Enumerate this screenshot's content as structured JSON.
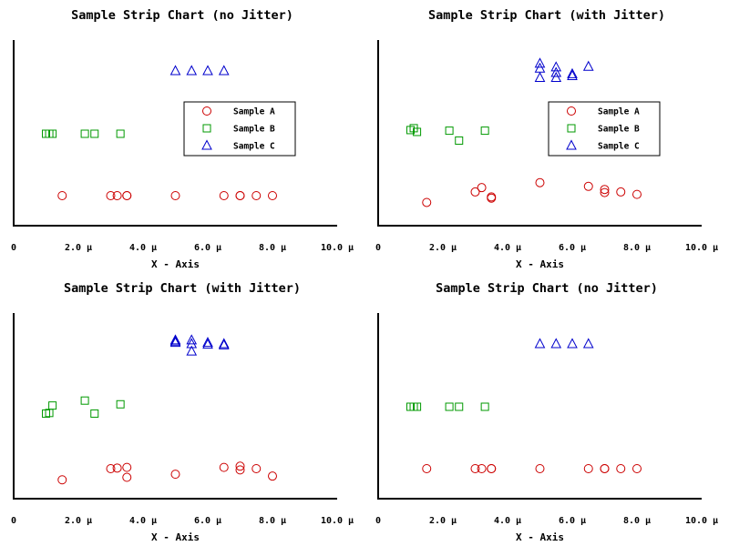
{
  "chart_data": [
    {
      "type": "scatter",
      "title": "Sample Strip Chart (no Jitter)",
      "xlabel": "X - Axis",
      "xlim": [
        0,
        10
      ],
      "xticks": [
        "0",
        "2.0 µ",
        "4.0 µ",
        "6.0 µ",
        "8.0 µ",
        "10.0 µ"
      ],
      "legend": "center-right",
      "series": [
        {
          "name": "Sample A",
          "color": "#cc0000",
          "marker": "circle",
          "level": 1,
          "x": [
            1.5,
            3.0,
            3.2,
            3.5,
            3.5,
            5.0,
            6.5,
            7.0,
            7.0,
            7.5,
            8.0
          ],
          "y": [
            1,
            1,
            1,
            1,
            1,
            1,
            1,
            1,
            1,
            1,
            1
          ]
        },
        {
          "name": "Sample B",
          "color": "#009900",
          "marker": "square",
          "level": 2,
          "x": [
            1.0,
            1.1,
            1.2,
            2.2,
            2.5,
            3.3
          ],
          "y": [
            2,
            2,
            2,
            2,
            2,
            2
          ]
        },
        {
          "name": "Sample C",
          "color": "#0000cc",
          "marker": "triangle",
          "level": 3,
          "x": [
            5.0,
            5.5,
            6.0,
            6.5
          ],
          "y": [
            3,
            3,
            3,
            3
          ]
        }
      ]
    },
    {
      "type": "scatter",
      "title": "Sample Strip Chart (with Jitter)",
      "xlabel": "X - Axis",
      "xlim": [
        0,
        10
      ],
      "xticks": [
        "0",
        "2.0 µ",
        "4.0 µ",
        "6.0 µ",
        "8.0 µ",
        "10.0 µ"
      ],
      "legend": "center-right",
      "series": [
        {
          "name": "Sample A",
          "color": "#cc0000",
          "marker": "circle",
          "level": 1,
          "x": [
            1.5,
            3.0,
            3.2,
            3.5,
            3.5,
            5.0,
            6.5,
            7.0,
            7.0,
            7.5,
            8.0
          ],
          "y": [
            0.89,
            1.06,
            1.13,
            0.96,
            0.98,
            1.21,
            1.15,
            1.05,
            1.1,
            1.06,
            1.02
          ]
        },
        {
          "name": "Sample B",
          "color": "#009900",
          "marker": "square",
          "level": 2,
          "x": [
            1.0,
            1.1,
            1.2,
            2.2,
            2.5,
            3.3
          ],
          "y": [
            2.06,
            2.09,
            2.03,
            2.05,
            1.89,
            2.05
          ]
        },
        {
          "name": "Sample C",
          "color": "#0000cc",
          "marker": "triangle",
          "level": 3,
          "x": [
            5.0,
            5.0,
            5.0,
            5.5,
            5.5,
            5.5,
            6.0,
            6.0,
            6.5
          ],
          "y": [
            3.12,
            3.04,
            2.89,
            3.06,
            2.97,
            2.89,
            2.95,
            2.92,
            3.07
          ]
        }
      ]
    },
    {
      "type": "scatter",
      "title": "Sample Strip Chart (with Jitter)",
      "xlabel": "X - Axis",
      "xlim": [
        0,
        10
      ],
      "xticks": [
        "0",
        "2.0 µ",
        "4.0 µ",
        "6.0 µ",
        "8.0 µ",
        "10.0 µ"
      ],
      "series": [
        {
          "name": "Sample A",
          "color": "#cc0000",
          "marker": "circle",
          "level": 1,
          "x": [
            1.5,
            3.0,
            3.2,
            3.5,
            3.5,
            5.0,
            6.5,
            7.0,
            7.0,
            7.5,
            8.0
          ],
          "y": [
            0.82,
            1.0,
            1.01,
            1.02,
            0.86,
            0.91,
            1.02,
            1.04,
            0.98,
            1.0,
            0.88
          ]
        },
        {
          "name": "Sample B",
          "color": "#009900",
          "marker": "square",
          "level": 2,
          "x": [
            1.0,
            1.1,
            1.2,
            2.2,
            2.5,
            3.3
          ],
          "y": [
            1.89,
            1.9,
            2.02,
            2.1,
            1.89,
            2.04
          ]
        },
        {
          "name": "Sample C",
          "color": "#0000cc",
          "marker": "triangle",
          "level": 3,
          "x": [
            5.0,
            5.0,
            5.0,
            5.5,
            5.5,
            5.5,
            6.0,
            6.0,
            6.5,
            6.5
          ],
          "y": [
            3.06,
            3.04,
            3.02,
            3.06,
            3.0,
            2.88,
            3.02,
            2.99,
            3.0,
            2.98
          ]
        }
      ]
    },
    {
      "type": "scatter",
      "title": "Sample Strip Chart (no Jitter)",
      "xlabel": "X - Axis",
      "xlim": [
        0,
        10
      ],
      "xticks": [
        "0",
        "2.0 µ",
        "4.0 µ",
        "6.0 µ",
        "8.0 µ",
        "10.0 µ"
      ],
      "series": [
        {
          "name": "Sample A",
          "color": "#cc0000",
          "marker": "circle",
          "level": 1,
          "x": [
            1.5,
            3.0,
            3.2,
            3.5,
            3.5,
            5.0,
            6.5,
            7.0,
            7.0,
            7.5,
            8.0
          ],
          "y": [
            1,
            1,
            1,
            1,
            1,
            1,
            1,
            1,
            1,
            1,
            1
          ]
        },
        {
          "name": "Sample B",
          "color": "#009900",
          "marker": "square",
          "level": 2,
          "x": [
            1.0,
            1.1,
            1.2,
            2.2,
            2.5,
            3.3
          ],
          "y": [
            2,
            2,
            2,
            2,
            2,
            2
          ]
        },
        {
          "name": "Sample C",
          "color": "#0000cc",
          "marker": "triangle",
          "level": 3,
          "x": [
            5.0,
            5.5,
            6.0,
            6.5
          ],
          "y": [
            3,
            3,
            3,
            3
          ]
        }
      ]
    }
  ]
}
